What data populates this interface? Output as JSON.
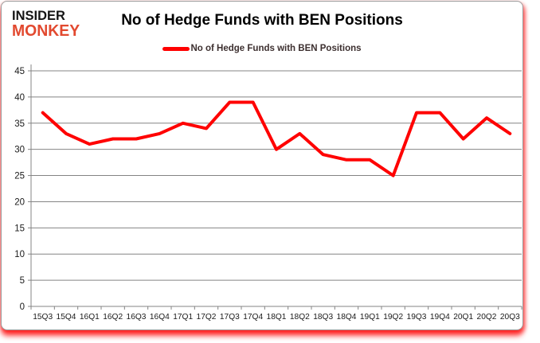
{
  "header": {
    "logo_line1": "INSIDER",
    "logo_line2": "MONKEY",
    "title": "No of Hedge Funds with BEN Positions"
  },
  "legend": {
    "label": "No of Hedge Funds with BEN Positions"
  },
  "chart_data": {
    "type": "line",
    "title": "No of Hedge Funds with BEN Positions",
    "categories": [
      "15Q3",
      "15Q4",
      "16Q1",
      "16Q2",
      "16Q3",
      "16Q4",
      "17Q1",
      "17Q2",
      "17Q3",
      "17Q4",
      "18Q1",
      "18Q2",
      "18Q3",
      "18Q4",
      "19Q1",
      "19Q2",
      "19Q3",
      "19Q4",
      "20Q1",
      "20Q2",
      "20Q3"
    ],
    "series": [
      {
        "name": "No of Hedge Funds with BEN Positions",
        "values": [
          37,
          33,
          31,
          32,
          32,
          33,
          35,
          34,
          39,
          39,
          30,
          33,
          29,
          28,
          28,
          25,
          37,
          37,
          32,
          36,
          33
        ],
        "color": "#ff0000"
      }
    ],
    "xlabel": "",
    "ylabel": "",
    "ylim": [
      0,
      45
    ],
    "ytick_step": 5,
    "grid": true,
    "legend_position": "top"
  },
  "colors": {
    "line": "#ff0000",
    "logo_red": "#e2492f",
    "grid": "#848484",
    "axis": "#848484",
    "tick_label": "#1a1a1a",
    "border": "#9b9b9b",
    "shadow": "#ff0000"
  }
}
